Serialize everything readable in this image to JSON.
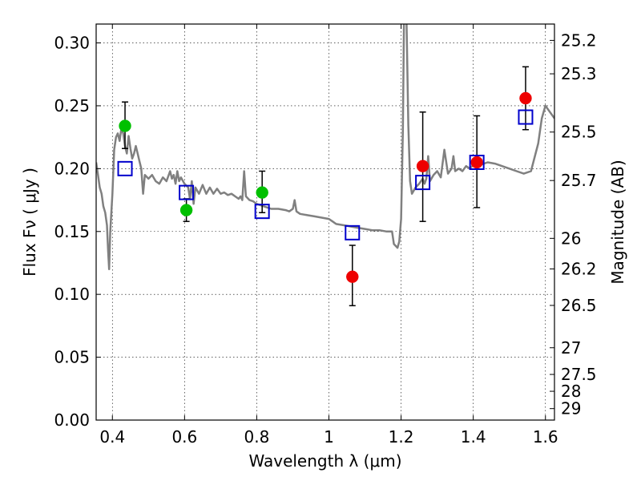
{
  "chart_data": {
    "type": "scatter",
    "xlabel": "Wavelength  λ (μm)",
    "ylabel": "Flux  Fν  ( μJy )",
    "y2label": "Magnitude (AB)",
    "xlim": [
      0.355,
      1.625
    ],
    "ylim": [
      0.0,
      0.315
    ],
    "x_ticks": [
      0.4,
      0.6,
      0.8,
      1.0,
      1.2,
      1.4,
      1.6
    ],
    "x_tick_labels": [
      "0.4",
      "0.6",
      "0.8",
      "1",
      "1.2",
      "1.4",
      "1.6"
    ],
    "y_ticks": [
      0.0,
      0.05,
      0.1,
      0.15,
      0.2,
      0.25,
      0.3
    ],
    "y_tick_labels": [
      "0.00",
      "0.05",
      "0.10",
      "0.15",
      "0.20",
      "0.25",
      "0.30"
    ],
    "mag_ticks": [
      25.2,
      25.3,
      25.5,
      25.7,
      26,
      26.2,
      26.5,
      27,
      27.5,
      28,
      29
    ],
    "mag_tick_labels": [
      "25.2",
      "25.3",
      "25.5",
      "25.7",
      "26",
      "26.2",
      "26.5",
      "27",
      "27.5",
      "28",
      "29"
    ],
    "grid": true,
    "colors": {
      "model_line": "#808080",
      "green_points": "#00c000",
      "red_points": "#ee0000",
      "model_boxes": "#0000cc",
      "error_bars": "#000000"
    },
    "series": [
      {
        "type": "line",
        "points": [
          [
            0.355,
            0.205
          ],
          [
            0.36,
            0.195
          ],
          [
            0.365,
            0.185
          ],
          [
            0.37,
            0.18
          ],
          [
            0.375,
            0.17
          ],
          [
            0.38,
            0.165
          ],
          [
            0.385,
            0.155
          ],
          [
            0.388,
            0.135
          ],
          [
            0.391,
            0.12
          ],
          [
            0.394,
            0.15
          ],
          [
            0.4,
            0.18
          ],
          [
            0.405,
            0.215
          ],
          [
            0.41,
            0.225
          ],
          [
            0.415,
            0.228
          ],
          [
            0.42,
            0.222
          ],
          [
            0.425,
            0.232
          ],
          [
            0.43,
            0.228
          ],
          [
            0.435,
            0.218
          ],
          [
            0.44,
            0.212
          ],
          [
            0.445,
            0.226
          ],
          [
            0.45,
            0.216
          ],
          [
            0.455,
            0.208
          ],
          [
            0.46,
            0.212
          ],
          [
            0.465,
            0.218
          ],
          [
            0.47,
            0.212
          ],
          [
            0.475,
            0.206
          ],
          [
            0.48,
            0.2
          ],
          [
            0.485,
            0.18
          ],
          [
            0.49,
            0.195
          ],
          [
            0.5,
            0.192
          ],
          [
            0.51,
            0.195
          ],
          [
            0.52,
            0.19
          ],
          [
            0.53,
            0.188
          ],
          [
            0.54,
            0.193
          ],
          [
            0.55,
            0.19
          ],
          [
            0.56,
            0.198
          ],
          [
            0.565,
            0.192
          ],
          [
            0.57,
            0.195
          ],
          [
            0.575,
            0.188
          ],
          [
            0.58,
            0.198
          ],
          [
            0.585,
            0.19
          ],
          [
            0.59,
            0.193
          ],
          [
            0.6,
            0.188
          ],
          [
            0.61,
            0.185
          ],
          [
            0.615,
            0.176
          ],
          [
            0.62,
            0.19
          ],
          [
            0.625,
            0.172
          ],
          [
            0.63,
            0.185
          ],
          [
            0.64,
            0.18
          ],
          [
            0.65,
            0.187
          ],
          [
            0.66,
            0.18
          ],
          [
            0.67,
            0.185
          ],
          [
            0.68,
            0.18
          ],
          [
            0.69,
            0.184
          ],
          [
            0.7,
            0.18
          ],
          [
            0.71,
            0.181
          ],
          [
            0.72,
            0.179
          ],
          [
            0.73,
            0.18
          ],
          [
            0.74,
            0.178
          ],
          [
            0.75,
            0.176
          ],
          [
            0.755,
            0.178
          ],
          [
            0.76,
            0.175
          ],
          [
            0.765,
            0.198
          ],
          [
            0.77,
            0.178
          ],
          [
            0.78,
            0.175
          ],
          [
            0.79,
            0.174
          ],
          [
            0.8,
            0.172
          ],
          [
            0.82,
            0.17
          ],
          [
            0.84,
            0.168
          ],
          [
            0.86,
            0.168
          ],
          [
            0.88,
            0.167
          ],
          [
            0.89,
            0.166
          ],
          [
            0.9,
            0.168
          ],
          [
            0.905,
            0.175
          ],
          [
            0.91,
            0.166
          ],
          [
            0.92,
            0.164
          ],
          [
            0.94,
            0.163
          ],
          [
            0.96,
            0.162
          ],
          [
            0.98,
            0.161
          ],
          [
            1.0,
            0.16
          ],
          [
            1.01,
            0.158
          ],
          [
            1.02,
            0.156
          ],
          [
            1.04,
            0.155
          ],
          [
            1.06,
            0.154
          ],
          [
            1.08,
            0.153
          ],
          [
            1.1,
            0.152
          ],
          [
            1.12,
            0.151
          ],
          [
            1.14,
            0.151
          ],
          [
            1.16,
            0.15
          ],
          [
            1.175,
            0.15
          ],
          [
            1.18,
            0.14
          ],
          [
            1.19,
            0.137
          ],
          [
            1.195,
            0.142
          ],
          [
            1.2,
            0.16
          ],
          [
            1.205,
            0.23
          ],
          [
            1.208,
            0.32
          ],
          [
            1.215,
            0.32
          ],
          [
            1.22,
            0.235
          ],
          [
            1.225,
            0.19
          ],
          [
            1.23,
            0.18
          ],
          [
            1.24,
            0.185
          ],
          [
            1.25,
            0.188
          ],
          [
            1.26,
            0.192
          ],
          [
            1.265,
            0.188
          ],
          [
            1.27,
            0.192
          ],
          [
            1.275,
            0.21
          ],
          [
            1.28,
            0.19
          ],
          [
            1.29,
            0.195
          ],
          [
            1.3,
            0.198
          ],
          [
            1.31,
            0.193
          ],
          [
            1.32,
            0.215
          ],
          [
            1.33,
            0.196
          ],
          [
            1.34,
            0.2
          ],
          [
            1.345,
            0.21
          ],
          [
            1.35,
            0.198
          ],
          [
            1.36,
            0.2
          ],
          [
            1.37,
            0.198
          ],
          [
            1.38,
            0.202
          ],
          [
            1.39,
            0.2
          ],
          [
            1.4,
            0.203
          ],
          [
            1.42,
            0.203
          ],
          [
            1.44,
            0.205
          ],
          [
            1.46,
            0.204
          ],
          [
            1.48,
            0.202
          ],
          [
            1.5,
            0.2
          ],
          [
            1.52,
            0.198
          ],
          [
            1.54,
            0.196
          ],
          [
            1.56,
            0.198
          ],
          [
            1.58,
            0.22
          ],
          [
            1.59,
            0.24
          ],
          [
            1.6,
            0.25
          ],
          [
            1.61,
            0.246
          ],
          [
            1.625,
            0.24
          ]
        ]
      },
      {
        "type": "scatter",
        "marker": "circle",
        "color_key": "green_points",
        "points": [
          {
            "x": 0.435,
            "y": 0.234,
            "lo": 0.216,
            "hi": 0.253
          },
          {
            "x": 0.605,
            "y": 0.167,
            "lo": 0.158,
            "hi": 0.176
          },
          {
            "x": 0.815,
            "y": 0.181,
            "lo": 0.165,
            "hi": 0.198
          }
        ]
      },
      {
        "type": "scatter",
        "marker": "circle",
        "color_key": "red_points",
        "points": [
          {
            "x": 1.065,
            "y": 0.114,
            "lo": 0.091,
            "hi": 0.139
          },
          {
            "x": 1.26,
            "y": 0.202,
            "lo": 0.158,
            "hi": 0.245
          },
          {
            "x": 1.41,
            "y": 0.205,
            "lo": 0.169,
            "hi": 0.242
          },
          {
            "x": 1.545,
            "y": 0.256,
            "lo": 0.231,
            "hi": 0.281
          }
        ]
      },
      {
        "type": "scatter",
        "marker": "square-open",
        "color_key": "model_boxes",
        "points": [
          {
            "x": 0.435,
            "y": 0.2
          },
          {
            "x": 0.605,
            "y": 0.181
          },
          {
            "x": 0.815,
            "y": 0.166
          },
          {
            "x": 1.065,
            "y": 0.149
          },
          {
            "x": 1.26,
            "y": 0.189
          },
          {
            "x": 1.41,
            "y": 0.205
          },
          {
            "x": 1.545,
            "y": 0.241
          }
        ]
      }
    ]
  }
}
